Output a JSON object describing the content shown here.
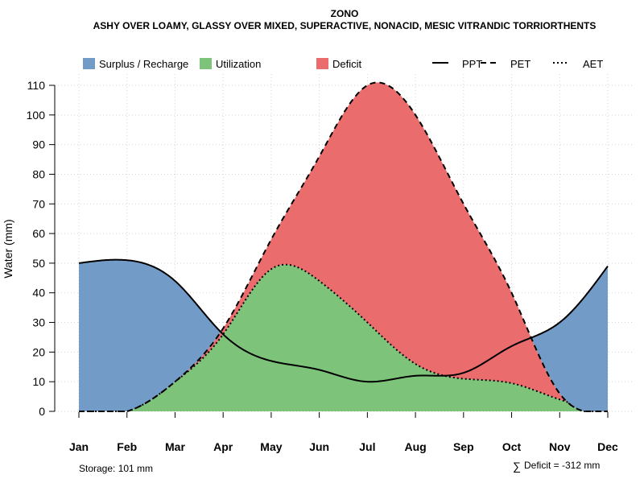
{
  "chart_data": {
    "type": "area",
    "title": "ZONO",
    "subtitle": "ASHY OVER LOAMY, GLASSY OVER MIXED, SUPERACTIVE, NONACID, MESIC VITRANDIC TORRIORTHENTS",
    "xlabel": "",
    "ylabel": "Water (mm)",
    "ylim": [
      0,
      110
    ],
    "yticks": [
      0,
      10,
      20,
      30,
      40,
      50,
      60,
      70,
      80,
      90,
      100,
      110
    ],
    "categories": [
      "Jan",
      "Feb",
      "Mar",
      "Apr",
      "May",
      "Jun",
      "Jul",
      "Aug",
      "Sep",
      "Oct",
      "Nov",
      "Dec"
    ],
    "grid": true,
    "legend_position": "top",
    "legend": {
      "areas": [
        {
          "name": "Surplus / Recharge",
          "color": "#729bc8"
        },
        {
          "name": "Utilization",
          "color": "#7dc47a"
        },
        {
          "name": "Deficit",
          "color": "#eb6c6c"
        }
      ],
      "lines": [
        {
          "name": "PPT",
          "style": "solid"
        },
        {
          "name": "PET",
          "style": "dashed"
        },
        {
          "name": "AET",
          "style": "dotted"
        }
      ]
    },
    "series": [
      {
        "name": "PPT",
        "values": [
          50,
          51,
          44,
          26,
          17,
          14,
          10,
          12,
          13,
          22,
          30,
          49
        ]
      },
      {
        "name": "PET",
        "values": [
          0,
          0,
          10,
          28,
          58,
          86,
          110,
          100,
          70,
          40,
          6,
          0
        ]
      },
      {
        "name": "AET",
        "values": [
          0,
          0,
          10,
          26,
          48,
          44,
          30,
          16,
          11,
          9.5,
          4,
          0
        ]
      }
    ],
    "annotations": {
      "storage": "Storage: 101 mm",
      "deficit": "Deficit = -312 mm",
      "deficit_symbol": "∑"
    }
  }
}
